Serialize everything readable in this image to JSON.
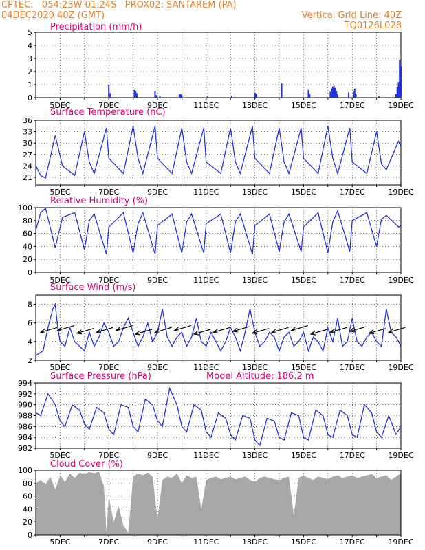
{
  "header": {
    "line1": "CPTEC:   054:23W-01:24S   PROX02: SANTAREM (PA)",
    "line2": "04DEC2020 40Z (GMT)",
    "grid_note": "Vertical Grid Line: 40Z",
    "product": "TQ0126L028"
  },
  "colors": {
    "header": "#e8802a",
    "title": "#e0007a",
    "series": "#2233dd",
    "cloud": "#a8a8a8",
    "wind_arrow": "#000000"
  },
  "date_labels": [
    "5DEC",
    "7DEC",
    "9DEC",
    "11DEC",
    "13DEC",
    "15DEC",
    "17DEC",
    "19DEC"
  ],
  "chart_data": [
    {
      "id": "precip",
      "type": "bar",
      "title": "Precipitation (mm/h)",
      "ylim": [
        0,
        5
      ],
      "yticks": [
        0,
        1,
        2,
        3,
        4,
        5
      ],
      "xlim_days": [
        4.0,
        19.0
      ],
      "x_unit": "day of December 2020",
      "points": [
        [
          7.0,
          1.0
        ],
        [
          7.05,
          0.35
        ],
        [
          8.05,
          0.6
        ],
        [
          8.1,
          0.5
        ],
        [
          8.15,
          0.35
        ],
        [
          8.9,
          0.5
        ],
        [
          8.95,
          0.2
        ],
        [
          9.1,
          0.15
        ],
        [
          9.9,
          0.25
        ],
        [
          9.95,
          0.3
        ],
        [
          10.0,
          0.2
        ],
        [
          11.05,
          0.1
        ],
        [
          12.05,
          0.15
        ],
        [
          13.0,
          0.4
        ],
        [
          13.05,
          0.3
        ],
        [
          14.1,
          1.1
        ],
        [
          15.2,
          0.6
        ],
        [
          15.25,
          0.3
        ],
        [
          16.1,
          0.45
        ],
        [
          16.15,
          0.7
        ],
        [
          16.2,
          0.85
        ],
        [
          16.25,
          0.9
        ],
        [
          16.3,
          0.75
        ],
        [
          16.35,
          0.5
        ],
        [
          16.4,
          0.3
        ],
        [
          16.85,
          0.4
        ],
        [
          17.05,
          0.45
        ],
        [
          17.1,
          0.7
        ],
        [
          17.15,
          0.3
        ],
        [
          18.1,
          0.1
        ],
        [
          18.8,
          0.3
        ],
        [
          18.85,
          0.8
        ],
        [
          18.9,
          1.2
        ],
        [
          18.95,
          2.9
        ],
        [
          19.0,
          2.4
        ]
      ]
    },
    {
      "id": "temp",
      "type": "line",
      "title": "Surface Temperature (nC)",
      "ylim": [
        19,
        36
      ],
      "yticks": [
        21,
        24,
        27,
        30,
        33,
        36
      ],
      "xlim_days": [
        4.0,
        19.0
      ],
      "x": [
        4.0,
        4.2,
        4.4,
        4.8,
        5.1,
        5.6,
        6.0,
        6.2,
        6.4,
        6.9,
        7.0,
        7.6,
        8.0,
        8.2,
        8.4,
        8.9,
        9.0,
        9.6,
        10.0,
        10.2,
        10.4,
        10.9,
        11.0,
        11.6,
        12.0,
        12.2,
        12.4,
        12.9,
        13.0,
        13.6,
        14.0,
        14.2,
        14.4,
        14.9,
        15.0,
        15.6,
        16.0,
        16.2,
        16.4,
        16.9,
        17.0,
        17.6,
        18.0,
        18.2,
        18.4,
        18.9,
        19.0
      ],
      "values": [
        24.0,
        21.5,
        20.8,
        32.0,
        24.0,
        21.5,
        33.0,
        25.0,
        22.0,
        34.0,
        26.0,
        22.0,
        34.5,
        26.0,
        22.0,
        34.5,
        26.0,
        22.0,
        34.0,
        25.0,
        22.0,
        34.0,
        25.0,
        22.0,
        34.0,
        25.0,
        22.0,
        34.5,
        26.0,
        22.0,
        34.0,
        25.0,
        22.0,
        34.0,
        26.0,
        22.0,
        34.5,
        26.0,
        22.0,
        34.0,
        25.0,
        22.0,
        33.0,
        24.5,
        23.0,
        30.5,
        29.0
      ]
    },
    {
      "id": "rh",
      "type": "line",
      "title": "Relative Humidity (%)",
      "ylim": [
        0,
        100
      ],
      "yticks": [
        0,
        20,
        40,
        60,
        80,
        100
      ],
      "xlim_days": [
        4.0,
        19.0
      ],
      "x": [
        4.0,
        4.2,
        4.4,
        4.8,
        5.1,
        5.6,
        6.0,
        6.2,
        6.4,
        6.9,
        7.0,
        7.6,
        8.0,
        8.2,
        8.4,
        8.9,
        9.0,
        9.6,
        10.0,
        10.2,
        10.4,
        10.9,
        11.0,
        11.6,
        12.0,
        12.2,
        12.4,
        12.9,
        13.0,
        13.6,
        14.0,
        14.2,
        14.4,
        14.9,
        15.0,
        15.6,
        16.0,
        16.2,
        16.4,
        16.9,
        17.0,
        17.6,
        18.0,
        18.2,
        18.4,
        18.9,
        19.0
      ],
      "values": [
        65.0,
        92.0,
        99.0,
        38.0,
        85.0,
        92.0,
        35.0,
        80.0,
        90.0,
        28.0,
        70.0,
        92.0,
        30.0,
        75.0,
        92.0,
        28.0,
        72.0,
        90.0,
        30.0,
        78.0,
        90.0,
        30.0,
        75.0,
        90.0,
        30.0,
        78.0,
        90.0,
        28.0,
        72.0,
        90.0,
        32.0,
        78.0,
        90.0,
        32.0,
        70.0,
        92.0,
        30.0,
        78.0,
        95.0,
        32.0,
        80.0,
        92.0,
        40.0,
        82.0,
        88.0,
        70.0,
        72.0
      ]
    },
    {
      "id": "wind",
      "type": "line",
      "title": "Surface Wind (m/s)",
      "ylim": [
        2,
        9
      ],
      "yticks": [
        2,
        4,
        6,
        8
      ],
      "xlim_days": [
        4.0,
        19.0
      ],
      "x": [
        4.0,
        4.3,
        4.5,
        4.7,
        4.8,
        4.9,
        5.0,
        5.2,
        5.4,
        5.6,
        5.8,
        6.0,
        6.2,
        6.4,
        6.6,
        6.8,
        7.0,
        7.2,
        7.4,
        7.6,
        7.8,
        8.0,
        8.2,
        8.4,
        8.6,
        8.8,
        9.0,
        9.2,
        9.4,
        9.6,
        9.8,
        10.0,
        10.2,
        10.4,
        10.6,
        10.8,
        11.0,
        11.2,
        11.4,
        11.6,
        11.8,
        12.0,
        12.2,
        12.4,
        12.6,
        12.8,
        13.0,
        13.2,
        13.4,
        13.6,
        13.8,
        14.0,
        14.2,
        14.4,
        14.6,
        14.8,
        15.0,
        15.2,
        15.4,
        15.6,
        15.8,
        16.0,
        16.2,
        16.4,
        16.6,
        16.8,
        17.0,
        17.2,
        17.4,
        17.6,
        17.8,
        18.0,
        18.2,
        18.4,
        18.6,
        18.8,
        19.0
      ],
      "values": [
        2.5,
        3.0,
        5.5,
        7.5,
        8.0,
        5.5,
        4.0,
        3.5,
        5.5,
        4.0,
        3.5,
        3.0,
        5.0,
        3.5,
        4.5,
        6.0,
        5.0,
        3.5,
        4.0,
        5.5,
        6.5,
        5.0,
        3.5,
        4.5,
        6.0,
        4.0,
        5.0,
        7.5,
        4.5,
        3.5,
        4.5,
        5.0,
        3.5,
        4.5,
        6.5,
        4.0,
        3.5,
        5.0,
        4.0,
        3.0,
        4.0,
        5.5,
        4.5,
        3.0,
        5.0,
        7.5,
        5.0,
        3.5,
        4.0,
        5.0,
        4.5,
        3.0,
        4.5,
        5.0,
        3.5,
        4.0,
        5.0,
        3.0,
        4.5,
        4.0,
        3.0,
        5.5,
        4.0,
        6.5,
        3.5,
        4.0,
        6.5,
        4.0,
        3.5,
        4.5,
        5.0,
        4.0,
        3.5,
        7.5,
        5.0,
        4.5,
        3.5
      ],
      "arrows_x": [
        4.2,
        4.9,
        5.7,
        6.5,
        7.3,
        8.1,
        8.9,
        9.7,
        10.5,
        11.3,
        12.1,
        12.9,
        13.7,
        14.5,
        15.3,
        16.1,
        16.9,
        17.7,
        18.5
      ],
      "arrows_y": [
        5.0,
        5.2,
        4.9,
        5.0,
        5.2,
        4.8,
        5.0,
        5.2,
        4.8,
        5.0,
        5.1,
        4.9,
        5.0,
        5.2,
        4.8,
        5.0,
        5.1,
        4.9,
        5.0
      ]
    },
    {
      "id": "press",
      "type": "line",
      "title": "Surface Pressure (hPa)",
      "annotation": "Model Altitude: 186.2 m",
      "ylim": [
        982,
        994
      ],
      "yticks": [
        982,
        984,
        986,
        988,
        990,
        992,
        994
      ],
      "xlim_days": [
        4.0,
        19.0
      ],
      "x": [
        4.0,
        4.2,
        4.5,
        4.8,
        5.0,
        5.2,
        5.5,
        5.8,
        6.0,
        6.2,
        6.5,
        6.8,
        7.0,
        7.2,
        7.5,
        7.8,
        8.0,
        8.2,
        8.5,
        8.8,
        9.0,
        9.2,
        9.5,
        9.8,
        10.0,
        10.2,
        10.5,
        10.8,
        11.0,
        11.2,
        11.5,
        11.8,
        12.0,
        12.2,
        12.5,
        12.8,
        13.0,
        13.2,
        13.5,
        13.8,
        14.0,
        14.2,
        14.5,
        14.8,
        15.0,
        15.2,
        15.5,
        15.8,
        16.0,
        16.2,
        16.5,
        16.8,
        17.0,
        17.2,
        17.5,
        17.8,
        18.0,
        18.2,
        18.5,
        18.8,
        19.0
      ],
      "values": [
        988.5,
        988.0,
        992.0,
        990.0,
        987.0,
        986.0,
        990.0,
        989.0,
        986.5,
        985.5,
        989.5,
        988.5,
        985.5,
        984.5,
        990.0,
        989.5,
        986.0,
        985.0,
        991.0,
        990.0,
        987.0,
        986.0,
        993.0,
        990.0,
        986.0,
        985.0,
        990.0,
        989.0,
        985.0,
        984.0,
        988.5,
        987.5,
        984.5,
        983.5,
        988.0,
        987.5,
        983.5,
        982.5,
        987.5,
        987.0,
        984.0,
        983.5,
        988.5,
        988.0,
        984.0,
        983.5,
        989.0,
        988.0,
        984.5,
        984.0,
        989.0,
        988.0,
        984.5,
        984.0,
        990.0,
        988.5,
        985.0,
        984.0,
        988.0,
        984.5,
        986.0
      ]
    },
    {
      "id": "cloud",
      "type": "area",
      "title": "Cloud Cover (%)",
      "ylim": [
        0,
        100
      ],
      "yticks": [
        0,
        20,
        40,
        60,
        80,
        100
      ],
      "xlim_days": [
        4.0,
        19.0
      ],
      "x": [
        4.0,
        4.2,
        4.4,
        4.6,
        4.8,
        5.0,
        5.2,
        5.4,
        5.6,
        5.8,
        6.0,
        6.2,
        6.4,
        6.6,
        6.8,
        6.9,
        7.0,
        7.2,
        7.4,
        7.6,
        7.8,
        8.0,
        8.2,
        8.4,
        8.6,
        8.8,
        9.0,
        9.2,
        9.4,
        9.6,
        9.8,
        10.0,
        10.2,
        10.4,
        10.6,
        10.8,
        11.0,
        11.2,
        11.4,
        11.6,
        11.8,
        12.0,
        12.2,
        12.4,
        12.6,
        12.8,
        13.0,
        13.2,
        13.4,
        13.6,
        13.8,
        14.0,
        14.2,
        14.4,
        14.6,
        14.8,
        15.0,
        15.2,
        15.4,
        15.6,
        15.8,
        16.0,
        16.2,
        16.4,
        16.6,
        16.8,
        17.0,
        17.2,
        17.4,
        17.6,
        17.8,
        18.0,
        18.2,
        18.4,
        18.6,
        18.8,
        19.0
      ],
      "values": [
        80.0,
        85.0,
        78.0,
        90.0,
        70.0,
        92.0,
        82.0,
        95.0,
        88.0,
        96.0,
        94.0,
        97.0,
        95.0,
        98.0,
        75.0,
        5.0,
        60.0,
        20.0,
        45.0,
        15.0,
        3.0,
        90.0,
        95.0,
        92.0,
        96.0,
        90.0,
        25.0,
        85.0,
        90.0,
        88.0,
        95.0,
        80.0,
        92.0,
        88.0,
        90.0,
        40.0,
        85.0,
        88.0,
        90.0,
        86.0,
        88.0,
        90.0,
        86.0,
        88.0,
        90.0,
        85.0,
        82.0,
        88.0,
        90.0,
        88.0,
        86.0,
        85.0,
        88.0,
        90.0,
        30.0,
        88.0,
        92.0,
        88.0,
        85.0,
        90.0,
        88.0,
        86.0,
        90.0,
        92.0,
        88.0,
        90.0,
        92.0,
        88.0,
        90.0,
        92.0,
        94.0,
        88.0,
        90.0,
        92.0,
        85.0,
        90.0,
        95.0
      ]
    }
  ]
}
